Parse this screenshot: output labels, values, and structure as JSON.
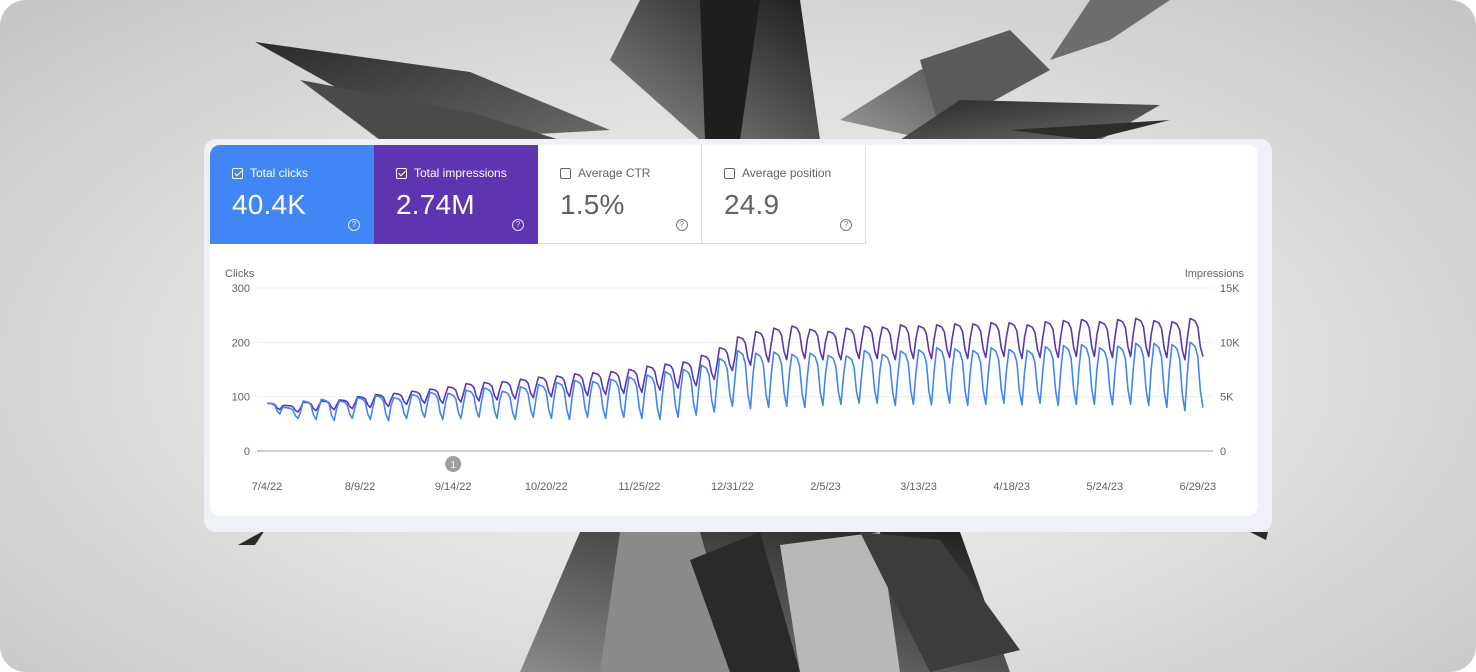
{
  "metrics": [
    {
      "label": "Total clicks",
      "value": "40.4K",
      "checked": true,
      "color": "#4285f4"
    },
    {
      "label": "Total impressions",
      "value": "2.74M",
      "checked": true,
      "color": "#5e35b1"
    },
    {
      "label": "Average CTR",
      "value": "1.5%",
      "checked": false,
      "color": "#ffffff"
    },
    {
      "label": "Average position",
      "value": "24.9",
      "checked": false,
      "color": "#ffffff"
    }
  ],
  "help_glyph": "?",
  "chart_data": {
    "type": "line",
    "title": "",
    "xlabel": "",
    "left_axis": {
      "label": "Clicks",
      "range": [
        0,
        300
      ],
      "ticks": [
        0,
        100,
        200,
        300
      ],
      "tick_labels": [
        "0",
        "100",
        "200",
        "300"
      ]
    },
    "right_axis": {
      "label": "Impressions",
      "range": [
        0,
        15000
      ],
      "ticks": [
        0,
        5000,
        10000,
        15000
      ],
      "tick_labels": [
        "0",
        "5K",
        "10K",
        "15K"
      ]
    },
    "x_range": [
      "2022-07-04",
      "2023-07-01"
    ],
    "x_ticks": [
      "2022-07-04",
      "2022-08-09",
      "2022-09-14",
      "2022-10-20",
      "2022-11-25",
      "2022-12-31",
      "2023-02-05",
      "2023-03-13",
      "2023-04-18",
      "2023-05-24",
      "2023-06-29"
    ],
    "x_tick_labels": [
      "7/4/22",
      "8/9/22",
      "9/14/22",
      "10/20/22",
      "11/25/22",
      "12/31/22",
      "2/5/23",
      "3/13/23",
      "4/18/23",
      "5/24/23",
      "6/29/23"
    ],
    "annotation": {
      "date": "2022-09-14",
      "label": "1"
    },
    "grid": true,
    "legend": "none",
    "series": [
      {
        "name": "Clicks",
        "axis": "left",
        "color": "#4285f4",
        "weekly_peaks": [
          88,
          80,
          92,
          95,
          92,
          98,
          102,
          98,
          104,
          108,
          106,
          112,
          116,
          110,
          118,
          122,
          126,
          130,
          128,
          132,
          136,
          140,
          146,
          150,
          158,
          170,
          185,
          180,
          182,
          178,
          180,
          176,
          175,
          185,
          178,
          184,
          186,
          190,
          188,
          185,
          190,
          187,
          185,
          192,
          194,
          196,
          190,
          193,
          198,
          198,
          196,
          200
        ],
        "weekly_lows": [
          68,
          60,
          58,
          56,
          60,
          58,
          56,
          60,
          62,
          58,
          60,
          62,
          60,
          58,
          62,
          60,
          58,
          62,
          60,
          62,
          60,
          58,
          62,
          66,
          72,
          82,
          78,
          80,
          82,
          80,
          84,
          86,
          88,
          88,
          84,
          86,
          85,
          88,
          84,
          86,
          88,
          85,
          88,
          84,
          86,
          86,
          85,
          86,
          84,
          80,
          74,
          80
        ]
      },
      {
        "name": "Impressions",
        "axis": "right",
        "color": "#5e35b1",
        "weekly_peaks": [
          4400,
          4200,
          4500,
          4600,
          4700,
          5000,
          5200,
          5300,
          5500,
          5700,
          5900,
          6200,
          6300,
          6400,
          6600,
          6800,
          6900,
          7100,
          7200,
          7300,
          7500,
          7800,
          8000,
          8200,
          8800,
          9500,
          10500,
          11000,
          11300,
          11500,
          11200,
          11000,
          11300,
          11500,
          11400,
          11600,
          11500,
          11600,
          11700,
          11700,
          11800,
          11800,
          11600,
          11900,
          12000,
          12100,
          11900,
          12100,
          12200,
          12000,
          11900,
          12200
        ],
        "weekly_lows": [
          3800,
          3600,
          3700,
          3800,
          3900,
          4000,
          4100,
          4300,
          4400,
          4400,
          4500,
          4600,
          4700,
          4800,
          4900,
          5000,
          5000,
          5100,
          5200,
          5300,
          5400,
          5600,
          5800,
          6000,
          6600,
          7400,
          7900,
          8200,
          8400,
          8500,
          8400,
          8400,
          8500,
          8500,
          8400,
          8500,
          8500,
          8600,
          8500,
          8600,
          8700,
          8500,
          8600,
          8600,
          8700,
          8700,
          8600,
          8700,
          8700,
          8600,
          8400,
          8700
        ]
      }
    ]
  }
}
